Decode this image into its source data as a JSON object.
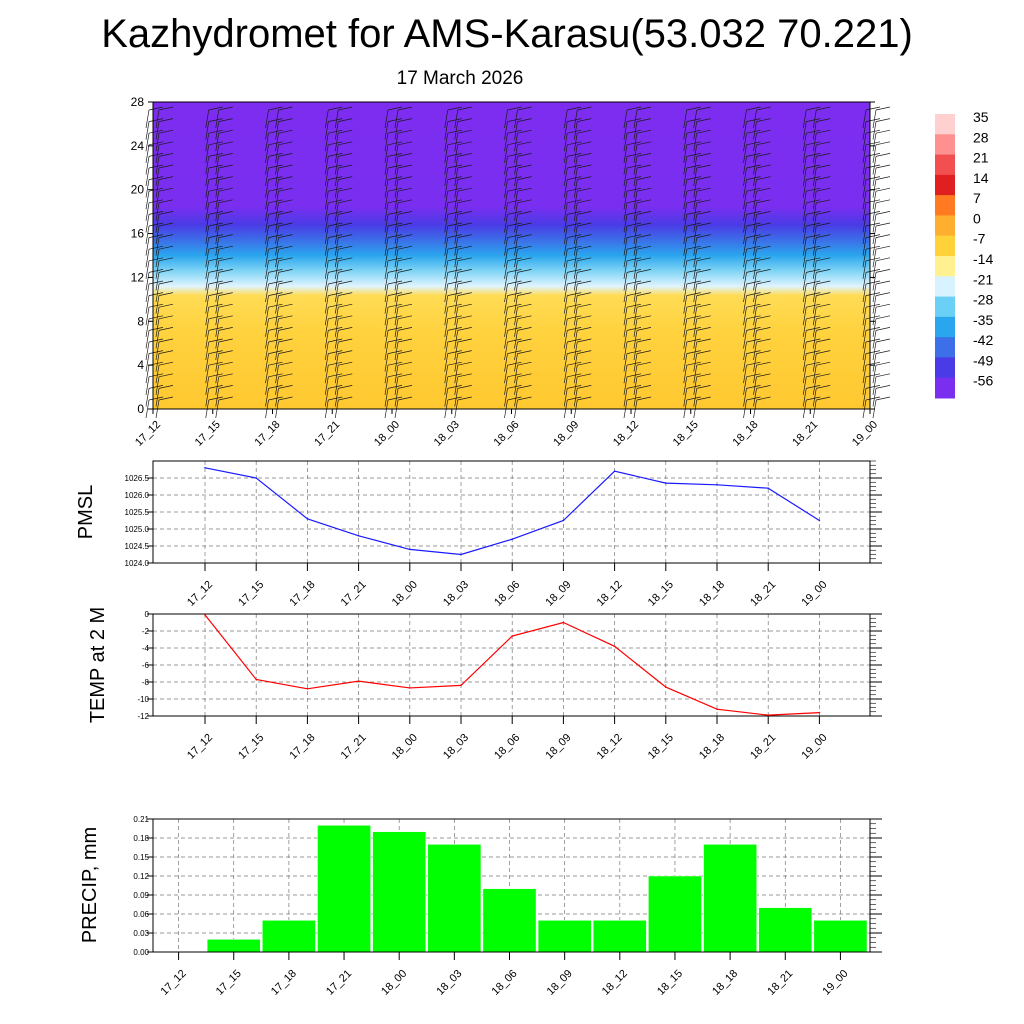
{
  "title": "Kazhydromet for AMS-Karasu(53.032 70.221)",
  "subtitle": "17 March 2026",
  "time_labels": [
    "17_12",
    "17_15",
    "17_18",
    "17_21",
    "18_00",
    "18_03",
    "18_06",
    "18_09",
    "18_12",
    "18_15",
    "18_18",
    "18_21",
    "19_00"
  ],
  "colors": {
    "pmsl_line": "#1a1aff",
    "temp_line": "#ff0000",
    "precip_bar": "#00ff00"
  },
  "chart_data": [
    {
      "type": "heatmap",
      "name": "upper-air-cross-section",
      "ylim": [
        0,
        28
      ],
      "yticks": [
        "0",
        "4",
        "8",
        "12",
        "16",
        "20",
        "24",
        "28"
      ],
      "colorbar_labels": [
        "35",
        "28",
        "21",
        "14",
        "7",
        "0",
        "-7",
        "-14",
        "-21",
        "-28",
        "-35",
        "-42",
        "-49",
        "-56"
      ],
      "colorbar_colors": [
        "#ffd0d0",
        "#ff9090",
        "#f25050",
        "#e02020",
        "#ff7a20",
        "#ffaf30",
        "#ffd23a",
        "#fff090",
        "#d8f3ff",
        "#6ad0f5",
        "#2aa6ee",
        "#3c6fe8",
        "#4a3be6",
        "#7a2ef0"
      ],
      "series": "wind barbs + temperature shading (deg C) vs height level and time"
    },
    {
      "type": "line",
      "name": "pmsl",
      "ylabel": "PMSL",
      "ylim": [
        1024.0,
        1027.0
      ],
      "yticks": [
        "1024.0",
        "1024.5",
        "1025.0",
        "1025.5",
        "1026.0",
        "1026.5"
      ],
      "x": [
        "17_12",
        "17_15",
        "17_18",
        "17_21",
        "18_00",
        "18_03",
        "18_06",
        "18_09",
        "18_12",
        "18_15",
        "18_18",
        "18_21",
        "19_00"
      ],
      "values": [
        1026.8,
        1026.5,
        1025.3,
        1024.8,
        1024.4,
        1024.25,
        1024.7,
        1025.25,
        1026.7,
        1026.35,
        1026.3,
        1026.2,
        1025.25
      ]
    },
    {
      "type": "line",
      "name": "temp-2m",
      "ylabel": "TEMP at 2 M",
      "ylim": [
        -12,
        0
      ],
      "yticks": [
        "0",
        "-2",
        "-4",
        "-6",
        "-8",
        "-10",
        "-12"
      ],
      "x": [
        "17_12",
        "17_15",
        "17_18",
        "17_21",
        "18_00",
        "18_03",
        "18_06",
        "18_09",
        "18_12",
        "18_15",
        "18_18",
        "18_21",
        "19_00"
      ],
      "values": [
        -0.1,
        -7.7,
        -8.8,
        -7.9,
        -8.7,
        -8.4,
        -2.6,
        -1.0,
        -3.8,
        -8.6,
        -11.2,
        -11.9,
        -11.6
      ]
    },
    {
      "type": "bar",
      "name": "precip",
      "ylabel": "PRECIP, mm",
      "ylim": [
        0,
        0.21
      ],
      "yticks": [
        "0.00",
        "0.03",
        "0.06",
        "0.09",
        "0.12",
        "0.15",
        "0.18",
        "0.21"
      ],
      "categories": [
        "17_12",
        "17_15",
        "17_18",
        "17_21",
        "18_00",
        "18_03",
        "18_06",
        "18_09",
        "18_12",
        "18_15",
        "18_18",
        "18_21",
        "19_00"
      ],
      "values": [
        0,
        0.02,
        0.05,
        0.2,
        0.19,
        0.17,
        0.1,
        0.05,
        0.05,
        0.12,
        0.17,
        0.07,
        0.05
      ]
    }
  ]
}
